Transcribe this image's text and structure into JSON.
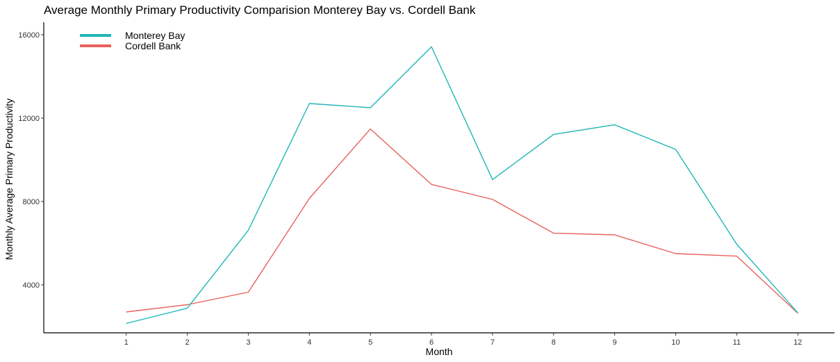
{
  "chart_data": {
    "type": "line",
    "title": "Average Monthly Primary Productivity Comparision Monterey Bay vs. Cordell Bank",
    "xlabel": "Month",
    "ylabel": "Monthly Average Primary Productivity",
    "x": [
      1,
      2,
      3,
      4,
      5,
      6,
      7,
      8,
      9,
      10,
      11,
      12
    ],
    "xlim": [
      -0.35,
      12.6
    ],
    "ylim": [
      1700,
      16600
    ],
    "yticks": [
      4000,
      8000,
      12000,
      16000
    ],
    "xticks": [
      1,
      2,
      3,
      4,
      5,
      6,
      7,
      8,
      9,
      10,
      11,
      12
    ],
    "grid": false,
    "legend_position": "top-left",
    "series": [
      {
        "name": "Monterey Bay",
        "color": "#1fb5b9",
        "values": [
          2150,
          2880,
          6620,
          12700,
          12500,
          15420,
          9050,
          11220,
          11680,
          10500,
          5950,
          2660
        ]
      },
      {
        "name": " Cordell Bank",
        "color": "#e8605b",
        "values": [
          2700,
          3050,
          3650,
          8150,
          11480,
          8820,
          8100,
          6480,
          6400,
          5500,
          5380,
          2640
        ]
      }
    ]
  }
}
